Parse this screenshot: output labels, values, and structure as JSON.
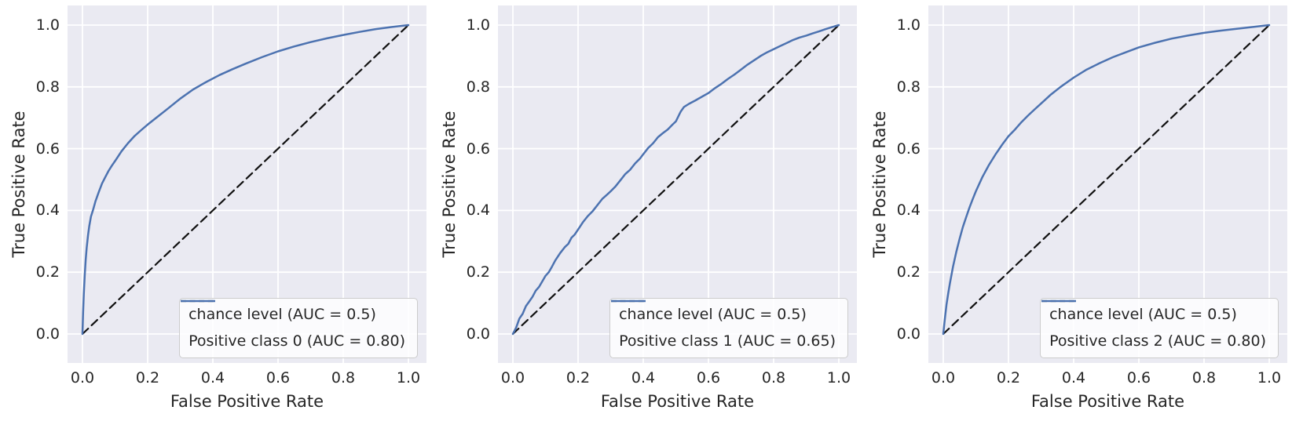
{
  "colors": {
    "figure_bg": "#ffffff",
    "axes_bg": "#eaeaf2",
    "grid": "#ffffff",
    "text": "#262626",
    "roc_curve": "#4c72b0",
    "chance_line": "#111111",
    "legend_bg": "#fbfbfc",
    "legend_border": "#cccccc"
  },
  "chart_data": [
    {
      "type": "line",
      "title": "",
      "xlabel": "False Positive Rate",
      "ylabel": "True Positive Rate",
      "xlim": [
        -0.05,
        1.05
      ],
      "ylim": [
        -0.05,
        1.05
      ],
      "grid": true,
      "legend_position": "lower right",
      "xticks": [
        "0.0",
        "0.2",
        "0.4",
        "0.6",
        "0.8",
        "1.0"
      ],
      "yticks": [
        "0.0",
        "0.2",
        "0.4",
        "0.6",
        "0.8",
        "1.0"
      ],
      "series": [
        {
          "name": "chance level (AUC = 0.5)",
          "style": "dashed",
          "color": "#111111",
          "auc": 0.5,
          "points": [
            [
              0,
              0
            ],
            [
              1,
              1
            ]
          ]
        },
        {
          "name": "Positive class 0 (AUC = 0.80)",
          "style": "solid",
          "color": "#4c72b0",
          "auc": 0.8,
          "points": [
            [
              0,
              0
            ],
            [
              0.002,
              0.07
            ],
            [
              0.004,
              0.13
            ],
            [
              0.007,
              0.19
            ],
            [
              0.01,
              0.24
            ],
            [
              0.013,
              0.28
            ],
            [
              0.017,
              0.32
            ],
            [
              0.021,
              0.35
            ],
            [
              0.026,
              0.38
            ],
            [
              0.032,
              0.4
            ],
            [
              0.04,
              0.43
            ],
            [
              0.05,
              0.46
            ],
            [
              0.06,
              0.487
            ],
            [
              0.07,
              0.508
            ],
            [
              0.08,
              0.528
            ],
            [
              0.09,
              0.545
            ],
            [
              0.1,
              0.56
            ],
            [
              0.12,
              0.592
            ],
            [
              0.14,
              0.618
            ],
            [
              0.16,
              0.641
            ],
            [
              0.18,
              0.66
            ],
            [
              0.2,
              0.678
            ],
            [
              0.23,
              0.703
            ],
            [
              0.26,
              0.728
            ],
            [
              0.3,
              0.762
            ],
            [
              0.34,
              0.792
            ],
            [
              0.38,
              0.816
            ],
            [
              0.42,
              0.838
            ],
            [
              0.46,
              0.857
            ],
            [
              0.5,
              0.875
            ],
            [
              0.55,
              0.896
            ],
            [
              0.6,
              0.915
            ],
            [
              0.65,
              0.931
            ],
            [
              0.7,
              0.945
            ],
            [
              0.75,
              0.957
            ],
            [
              0.8,
              0.968
            ],
            [
              0.85,
              0.978
            ],
            [
              0.9,
              0.987
            ],
            [
              0.95,
              0.994
            ],
            [
              1,
              1
            ]
          ]
        }
      ]
    },
    {
      "type": "line",
      "title": "",
      "xlabel": "False Positive Rate",
      "ylabel": "True Positive Rate",
      "xlim": [
        -0.05,
        1.05
      ],
      "ylim": [
        -0.05,
        1.05
      ],
      "grid": true,
      "legend_position": "lower right",
      "xticks": [
        "0.0",
        "0.2",
        "0.4",
        "0.6",
        "0.8",
        "1.0"
      ],
      "yticks": [
        "0.0",
        "0.2",
        "0.4",
        "0.6",
        "0.8",
        "1.0"
      ],
      "series": [
        {
          "name": "chance level (AUC = 0.5)",
          "style": "dashed",
          "color": "#111111",
          "auc": 0.5,
          "points": [
            [
              0,
              0
            ],
            [
              1,
              1
            ]
          ]
        },
        {
          "name": "Positive class 1 (AUC = 0.65)",
          "style": "solid",
          "color": "#4c72b0",
          "auc": 0.65,
          "points": [
            [
              0,
              0
            ],
            [
              0.01,
              0.02
            ],
            [
              0.02,
              0.05
            ],
            [
              0.03,
              0.065
            ],
            [
              0.04,
              0.09
            ],
            [
              0.05,
              0.105
            ],
            [
              0.06,
              0.12
            ],
            [
              0.07,
              0.14
            ],
            [
              0.08,
              0.152
            ],
            [
              0.09,
              0.17
            ],
            [
              0.1,
              0.188
            ],
            [
              0.11,
              0.2
            ],
            [
              0.12,
              0.218
            ],
            [
              0.13,
              0.238
            ],
            [
              0.145,
              0.262
            ],
            [
              0.16,
              0.282
            ],
            [
              0.17,
              0.292
            ],
            [
              0.18,
              0.312
            ],
            [
              0.19,
              0.322
            ],
            [
              0.2,
              0.338
            ],
            [
              0.215,
              0.362
            ],
            [
              0.23,
              0.382
            ],
            [
              0.245,
              0.398
            ],
            [
              0.26,
              0.418
            ],
            [
              0.275,
              0.438
            ],
            [
              0.29,
              0.452
            ],
            [
              0.3,
              0.462
            ],
            [
              0.315,
              0.478
            ],
            [
              0.33,
              0.498
            ],
            [
              0.345,
              0.518
            ],
            [
              0.36,
              0.532
            ],
            [
              0.375,
              0.552
            ],
            [
              0.39,
              0.568
            ],
            [
              0.4,
              0.582
            ],
            [
              0.415,
              0.602
            ],
            [
              0.43,
              0.617
            ],
            [
              0.445,
              0.637
            ],
            [
              0.46,
              0.65
            ],
            [
              0.475,
              0.662
            ],
            [
              0.49,
              0.678
            ],
            [
              0.5,
              0.688
            ],
            [
              0.507,
              0.703
            ],
            [
              0.515,
              0.72
            ],
            [
              0.525,
              0.735
            ],
            [
              0.54,
              0.745
            ],
            [
              0.56,
              0.756
            ],
            [
              0.58,
              0.768
            ],
            [
              0.6,
              0.78
            ],
            [
              0.62,
              0.796
            ],
            [
              0.64,
              0.81
            ],
            [
              0.66,
              0.826
            ],
            [
              0.68,
              0.84
            ],
            [
              0.7,
              0.856
            ],
            [
              0.72,
              0.872
            ],
            [
              0.74,
              0.886
            ],
            [
              0.76,
              0.9
            ],
            [
              0.78,
              0.912
            ],
            [
              0.8,
              0.922
            ],
            [
              0.82,
              0.932
            ],
            [
              0.84,
              0.942
            ],
            [
              0.86,
              0.952
            ],
            [
              0.88,
              0.96
            ],
            [
              0.9,
              0.966
            ],
            [
              0.92,
              0.973
            ],
            [
              0.94,
              0.98
            ],
            [
              0.96,
              0.987
            ],
            [
              0.98,
              0.994
            ],
            [
              1,
              1
            ]
          ]
        }
      ]
    },
    {
      "type": "line",
      "title": "",
      "xlabel": "False Positive Rate",
      "ylabel": "True Positive Rate",
      "xlim": [
        -0.05,
        1.05
      ],
      "ylim": [
        -0.05,
        1.05
      ],
      "grid": true,
      "legend_position": "lower right",
      "xticks": [
        "0.0",
        "0.2",
        "0.4",
        "0.6",
        "0.8",
        "1.0"
      ],
      "yticks": [
        "0.0",
        "0.2",
        "0.4",
        "0.6",
        "0.8",
        "1.0"
      ],
      "series": [
        {
          "name": "chance level (AUC = 0.5)",
          "style": "dashed",
          "color": "#111111",
          "auc": 0.5,
          "points": [
            [
              0,
              0
            ],
            [
              1,
              1
            ]
          ]
        },
        {
          "name": "Positive class 2 (AUC = 0.80)",
          "style": "solid",
          "color": "#4c72b0",
          "auc": 0.8,
          "points": [
            [
              0,
              0
            ],
            [
              0.003,
              0.03
            ],
            [
              0.006,
              0.06
            ],
            [
              0.01,
              0.095
            ],
            [
              0.015,
              0.13
            ],
            [
              0.02,
              0.162
            ],
            [
              0.03,
              0.218
            ],
            [
              0.04,
              0.266
            ],
            [
              0.05,
              0.308
            ],
            [
              0.06,
              0.346
            ],
            [
              0.07,
              0.378
            ],
            [
              0.08,
              0.408
            ],
            [
              0.09,
              0.436
            ],
            [
              0.1,
              0.462
            ],
            [
              0.12,
              0.508
            ],
            [
              0.14,
              0.547
            ],
            [
              0.16,
              0.581
            ],
            [
              0.18,
              0.612
            ],
            [
              0.2,
              0.64
            ],
            [
              0.22,
              0.662
            ],
            [
              0.24,
              0.686
            ],
            [
              0.26,
              0.707
            ],
            [
              0.28,
              0.727
            ],
            [
              0.3,
              0.746
            ],
            [
              0.33,
              0.775
            ],
            [
              0.36,
              0.8
            ],
            [
              0.4,
              0.83
            ],
            [
              0.44,
              0.856
            ],
            [
              0.48,
              0.877
            ],
            [
              0.52,
              0.896
            ],
            [
              0.56,
              0.912
            ],
            [
              0.6,
              0.928
            ],
            [
              0.65,
              0.943
            ],
            [
              0.7,
              0.956
            ],
            [
              0.75,
              0.966
            ],
            [
              0.8,
              0.975
            ],
            [
              0.85,
              0.982
            ],
            [
              0.9,
              0.988
            ],
            [
              0.95,
              0.994
            ],
            [
              1,
              1
            ]
          ]
        }
      ]
    }
  ]
}
